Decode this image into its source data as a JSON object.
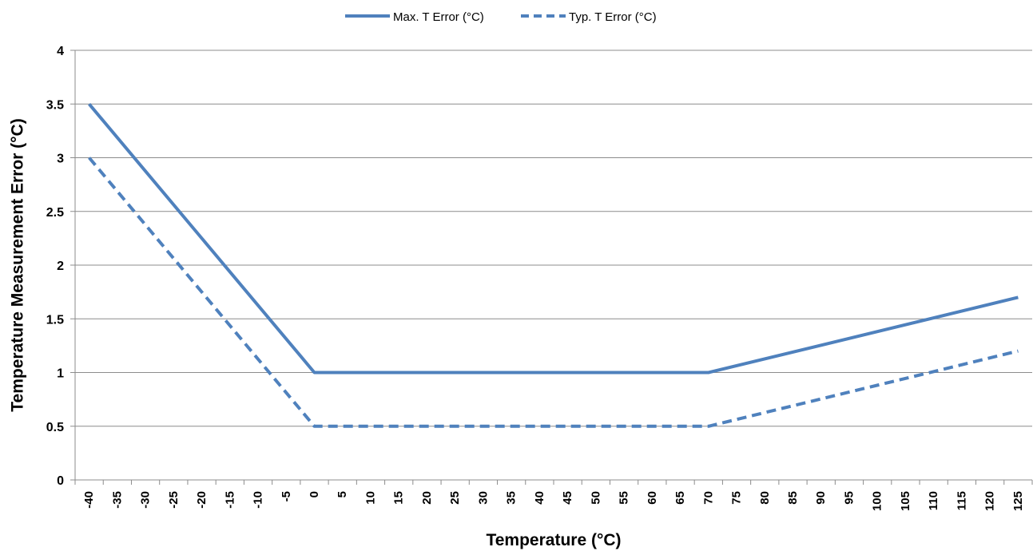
{
  "chart_data": {
    "type": "line",
    "title": "",
    "xlabel": "Temperature (°C)",
    "ylabel": "Temperature Measurement Error (°C)",
    "categories": [
      "-40",
      "-35",
      "-30",
      "-25",
      "-20",
      "-15",
      "-10",
      "-5",
      "0",
      "5",
      "10",
      "15",
      "20",
      "25",
      "30",
      "35",
      "40",
      "45",
      "50",
      "55",
      "60",
      "65",
      "70",
      "75",
      "80",
      "85",
      "90",
      "95",
      "100",
      "105",
      "110",
      "115",
      "120",
      "125"
    ],
    "y_ticks": [
      "0",
      "0.5",
      "1",
      "1.5",
      "2",
      "2.5",
      "3",
      "3.5",
      "4"
    ],
    "ylim": [
      0,
      4
    ],
    "xlim": [
      -40,
      125
    ],
    "grid": "horizontal",
    "legend_position": "top",
    "series": [
      {
        "name": "Max. T Error (°C)",
        "style": "solid",
        "color": "#4f81bd",
        "x": [
          -40,
          0,
          70,
          125
        ],
        "y": [
          3.5,
          1,
          1,
          1.7
        ]
      },
      {
        "name": "Typ. T Error (°C)",
        "style": "dashed",
        "color": "#4f81bd",
        "x": [
          -40,
          0,
          70,
          125
        ],
        "y": [
          3,
          0.5,
          0.5,
          1.2
        ]
      }
    ]
  }
}
